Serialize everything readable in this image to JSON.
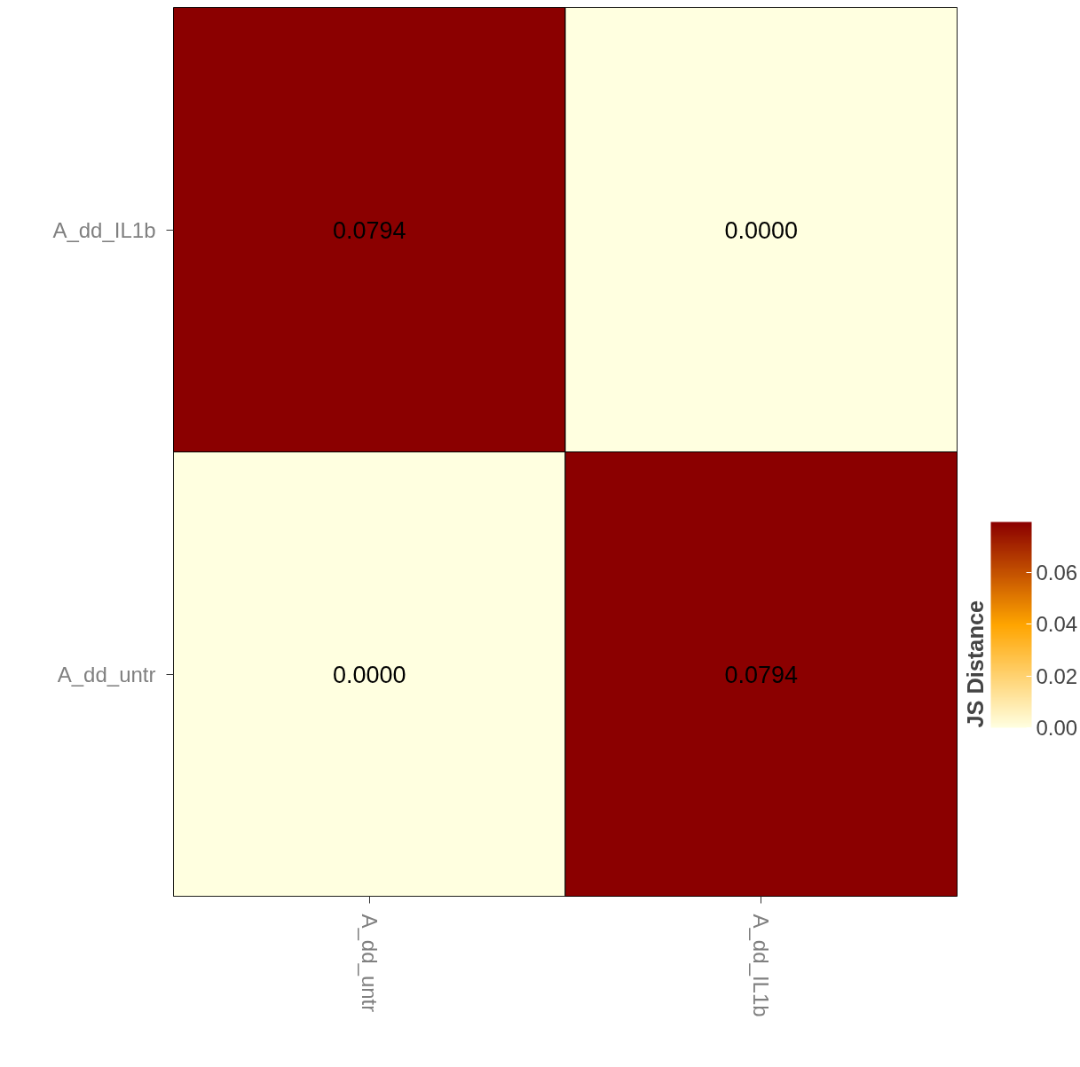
{
  "chart_data": {
    "type": "heatmap",
    "clabel": "JS Distance",
    "categories": [
      "A_dd_untr",
      "A_dd_IL1b"
    ],
    "y_categories": [
      "A_dd_IL1b",
      "A_dd_untr"
    ],
    "cells": [
      [
        0.0794,
        0.0
      ],
      [
        0.0,
        0.0794
      ]
    ],
    "cell_labels": [
      [
        "0.0794",
        "0.0000"
      ],
      [
        "0.0000",
        "0.0794"
      ]
    ],
    "clim": [
      0,
      0.0794
    ],
    "cticks": [
      {
        "value": 0,
        "label": "0.00"
      },
      {
        "value": 0.02,
        "label": "0.02"
      },
      {
        "value": 0.04,
        "label": "0.04"
      },
      {
        "value": 0.06,
        "label": "0.06"
      }
    ],
    "colors": [
      "#ffffe0",
      "#ffa500",
      "#8b0000"
    ],
    "grid": false
  }
}
